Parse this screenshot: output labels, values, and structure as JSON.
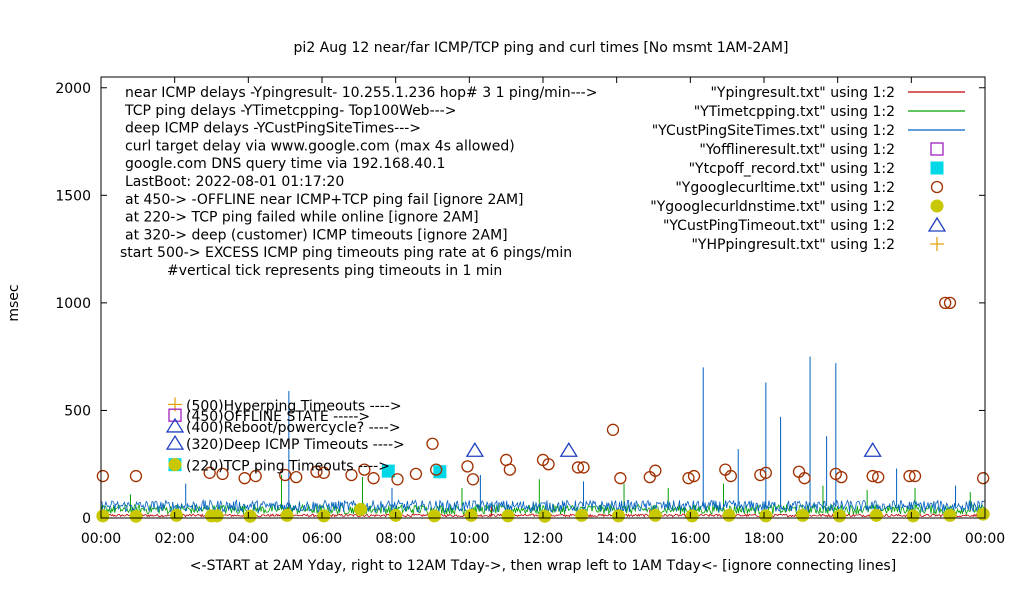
{
  "chart_data": {
    "type": "scatter",
    "title": "pi2 Aug 12  near/far ICMP/TCP ping and curl times [No msmt 1AM-2AM]",
    "xlabel": "<-START at 2AM Yday, right to 12AM Tday->, then wrap left to 1AM Tday<- [ignore connecting lines]",
    "ylabel": "msec",
    "xlim": [
      0,
      24
    ],
    "ylim": [
      0,
      2050
    ],
    "x_ticks": [
      "00:00",
      "02:00",
      "04:00",
      "06:00",
      "08:00",
      "10:00",
      "12:00",
      "14:00",
      "16:00",
      "18:00",
      "20:00",
      "22:00",
      "00:00"
    ],
    "y_ticks": [
      "0",
      "500",
      "1000",
      "1500",
      "2000"
    ],
    "grid": false,
    "legend_placement": "top-right",
    "annotations": [
      "near ICMP delays -Ypingresult- 10.255.1.236 hop# 3 1 ping/min--->",
      "TCP ping delays -YTimetcpping- Top100Web--->",
      "deep ICMP delays -YCustPingSiteTimes--->",
      "curl target delay via www.google.com (max 4s allowed)",
      "google.com DNS query time via 192.168.40.1",
      "LastBoot: 2022-08-01 01:17:20",
      "at 450-> -OFFLINE near ICMP+TCP ping fail [ignore 2AM]",
      "at 220-> TCP ping failed while online [ignore 2AM]",
      "at 320-> deep (customer) ICMP timeouts [ignore 2AM]",
      "start 500-> EXCESS ICMP ping timeouts ping rate at 6 pings/min",
      "#vertical tick represents ping timeouts in 1 min"
    ],
    "marker_labels": [
      "(500)Hyperping Timeouts ---->",
      "(450)OFFLINE STATE ----->",
      "(400)Reboot/powercycle? ---->",
      "(320)Deep ICMP Timeouts ---->",
      "(220)TCP ping Timeouts ---->"
    ],
    "series": [
      {
        "name": "\"Ypingresult.txt\" using 1:2",
        "style": "line",
        "color": "#c00000",
        "baseline": 12,
        "noise": 12,
        "spikes": [
          [
            3.2,
            45
          ],
          [
            5.1,
            80
          ],
          [
            10.6,
            55
          ],
          [
            14.9,
            40
          ],
          [
            19.2,
            50
          ]
        ]
      },
      {
        "name": "\"YTimetcpping.txt\" using 1:2",
        "style": "line",
        "color": "#00a000",
        "baseline": 40,
        "noise": 45,
        "spikes": [
          [
            0.8,
            110
          ],
          [
            4.9,
            200
          ],
          [
            7.1,
            190
          ],
          [
            9.8,
            140
          ],
          [
            11.9,
            180
          ],
          [
            14.2,
            160
          ],
          [
            15.4,
            140
          ],
          [
            16.9,
            160
          ],
          [
            19.6,
            150
          ],
          [
            20.8,
            130
          ],
          [
            22.1,
            140
          ],
          [
            23.6,
            120
          ]
        ]
      },
      {
        "name": "\"YCustPingSiteTimes.txt\" using 1:2",
        "style": "line",
        "color": "#0060c0",
        "baseline": 55,
        "noise": 55,
        "spikes": [
          [
            2.3,
            160
          ],
          [
            5.1,
            590
          ],
          [
            7.9,
            140
          ],
          [
            10.3,
            200
          ],
          [
            13.1,
            170
          ],
          [
            16.35,
            700
          ],
          [
            17.3,
            320
          ],
          [
            18.05,
            630
          ],
          [
            18.45,
            470
          ],
          [
            19.25,
            750
          ],
          [
            19.7,
            380
          ],
          [
            19.95,
            720
          ],
          [
            21.6,
            230
          ],
          [
            23.2,
            150
          ]
        ]
      },
      {
        "name": "\"Yofflineresult.txt\" using 1:2",
        "style": "square-open",
        "color": "#a020c0",
        "points": []
      },
      {
        "name": "\"Ytcpoff_record.txt\" using 1:2",
        "style": "square-filled",
        "color": "#00d8e8",
        "points": [
          [
            7.8,
            218
          ],
          [
            9.2,
            215
          ]
        ]
      },
      {
        "name": "\"Ygooglecurltime.txt\" using 1:2",
        "style": "circle-open",
        "color": "#a03000",
        "points": [
          [
            0.05,
            195
          ],
          [
            0.95,
            195
          ],
          [
            2.95,
            210
          ],
          [
            3.3,
            205
          ],
          [
            3.9,
            185
          ],
          [
            4.2,
            195
          ],
          [
            5.0,
            200
          ],
          [
            5.3,
            190
          ],
          [
            5.85,
            215
          ],
          [
            6.05,
            210
          ],
          [
            6.8,
            200
          ],
          [
            7.15,
            225
          ],
          [
            7.4,
            185
          ],
          [
            8.05,
            180
          ],
          [
            8.55,
            205
          ],
          [
            9.0,
            345
          ],
          [
            9.1,
            225
          ],
          [
            9.95,
            240
          ],
          [
            10.1,
            180
          ],
          [
            11.0,
            270
          ],
          [
            11.1,
            225
          ],
          [
            12.0,
            270
          ],
          [
            12.15,
            250
          ],
          [
            12.95,
            235
          ],
          [
            13.1,
            235
          ],
          [
            13.9,
            410
          ],
          [
            14.1,
            185
          ],
          [
            14.9,
            190
          ],
          [
            15.05,
            220
          ],
          [
            15.95,
            185
          ],
          [
            16.1,
            195
          ],
          [
            16.95,
            225
          ],
          [
            17.1,
            195
          ],
          [
            17.9,
            200
          ],
          [
            18.05,
            210
          ],
          [
            18.95,
            215
          ],
          [
            19.1,
            185
          ],
          [
            19.95,
            205
          ],
          [
            20.1,
            190
          ],
          [
            20.95,
            195
          ],
          [
            21.1,
            190
          ],
          [
            21.95,
            195
          ],
          [
            22.1,
            195
          ],
          [
            22.92,
            1000
          ],
          [
            23.05,
            1000
          ],
          [
            23.95,
            185
          ]
        ]
      },
      {
        "name": "\"Ygooglecurldnstime.txt\" using 1:2",
        "style": "circle-filled",
        "color": "#c8c800",
        "points": [
          [
            0.05,
            10
          ],
          [
            0.95,
            8
          ],
          [
            2.05,
            12
          ],
          [
            3.0,
            10
          ],
          [
            3.15,
            10
          ],
          [
            4.05,
            8
          ],
          [
            5.05,
            12
          ],
          [
            6.05,
            10
          ],
          [
            7.05,
            40
          ],
          [
            8.0,
            12
          ],
          [
            9.05,
            10
          ],
          [
            10.05,
            12
          ],
          [
            11.05,
            10
          ],
          [
            12.05,
            8
          ],
          [
            13.05,
            12
          ],
          [
            14.05,
            10
          ],
          [
            15.05,
            12
          ],
          [
            16.05,
            10
          ],
          [
            17.05,
            12
          ],
          [
            18.05,
            10
          ],
          [
            19.05,
            12
          ],
          [
            20.05,
            10
          ],
          [
            21.05,
            12
          ],
          [
            22.05,
            10
          ],
          [
            23.05,
            12
          ],
          [
            23.95,
            18
          ]
        ]
      },
      {
        "name": "\"YCustPingTimeout.txt\" using 1:2",
        "style": "triangle-open",
        "color": "#2040c0",
        "points": [
          [
            10.15,
            315
          ],
          [
            12.7,
            315
          ],
          [
            20.95,
            315
          ]
        ]
      },
      {
        "name": "\"YHPpingresult.txt\" using 1:2",
        "style": "plus",
        "color": "#e0a000",
        "points": []
      }
    ]
  }
}
